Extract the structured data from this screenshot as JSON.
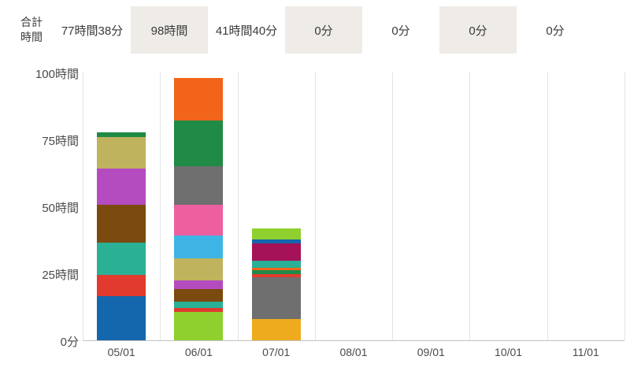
{
  "header": {
    "label": "合計\n時間",
    "totals": [
      {
        "label": "77時間38分",
        "shaded": false
      },
      {
        "label": "98時間",
        "shaded": true
      },
      {
        "label": "41時間40分",
        "shaded": false
      },
      {
        "label": "0分",
        "shaded": true
      },
      {
        "label": "0分",
        "shaded": false
      },
      {
        "label": "0分",
        "shaded": true
      },
      {
        "label": "0分",
        "shaded": false
      }
    ],
    "shaded_color": "#efece8"
  },
  "chart_data": {
    "type": "bar",
    "stacked": true,
    "title": "",
    "xlabel": "",
    "ylabel": "",
    "legend": "none",
    "grid": "vertical-column-separators",
    "ylim": [
      0,
      100
    ],
    "y_ticks": [
      {
        "value": 0,
        "label": "0分"
      },
      {
        "value": 25,
        "label": "25時間"
      },
      {
        "value": 50,
        "label": "50時間"
      },
      {
        "value": 75,
        "label": "75時間"
      },
      {
        "value": 100,
        "label": "100時間"
      }
    ],
    "categories": [
      "05/01",
      "06/01",
      "07/01",
      "08/01",
      "09/01",
      "10/01",
      "11/01"
    ],
    "totals_hours": [
      77.63,
      98,
      41.67,
      0,
      0,
      0,
      0
    ],
    "bars": [
      {
        "category": "05/01",
        "total_label": "77時間38分",
        "segments": [
          {
            "color": "#1467ad",
            "hours": 16.5
          },
          {
            "color": "#e23a2e",
            "hours": 8
          },
          {
            "color": "#2ab095",
            "hours": 12
          },
          {
            "color": "#7b4a0f",
            "hours": 14
          },
          {
            "color": "#b44bbf",
            "hours": 13.5
          },
          {
            "color": "#c0b35e",
            "hours": 12
          },
          {
            "color": "#208a47",
            "hours": 1.6
          }
        ]
      },
      {
        "category": "06/01",
        "total_label": "98時間",
        "segments": [
          {
            "color": "#8fd02e",
            "hours": 10.5
          },
          {
            "color": "#e23a2e",
            "hours": 1.5
          },
          {
            "color": "#2ab095",
            "hours": 2.5
          },
          {
            "color": "#7b4a0f",
            "hours": 4.5
          },
          {
            "color": "#b44bbf",
            "hours": 3.5
          },
          {
            "color": "#c0b35e",
            "hours": 8
          },
          {
            "color": "#3fb5e5",
            "hours": 8.5
          },
          {
            "color": "#ee5fa0",
            "hours": 11.5
          },
          {
            "color": "#6f6f6f",
            "hours": 14.5
          },
          {
            "color": "#208a47",
            "hours": 17
          },
          {
            "color": "#f26419",
            "hours": 16
          }
        ]
      },
      {
        "category": "07/01",
        "total_label": "41時間40分",
        "segments": [
          {
            "color": "#eeab1e",
            "hours": 8
          },
          {
            "color": "#6f6f6f",
            "hours": 15.5
          },
          {
            "color": "#e23a2e",
            "hours": 1.3
          },
          {
            "color": "#208a47",
            "hours": 1.5
          },
          {
            "color": "#f26419",
            "hours": 0.9
          },
          {
            "color": "#2ab095",
            "hours": 2.6
          },
          {
            "color": "#a51257",
            "hours": 6.5
          },
          {
            "color": "#1467ad",
            "hours": 1.5
          },
          {
            "color": "#8fd02e",
            "hours": 3.9
          }
        ]
      },
      {
        "category": "08/01",
        "total_label": "0分",
        "segments": []
      },
      {
        "category": "09/01",
        "total_label": "0分",
        "segments": []
      },
      {
        "category": "10/01",
        "total_label": "0分",
        "segments": []
      },
      {
        "category": "11/01",
        "total_label": "0分",
        "segments": []
      }
    ]
  }
}
